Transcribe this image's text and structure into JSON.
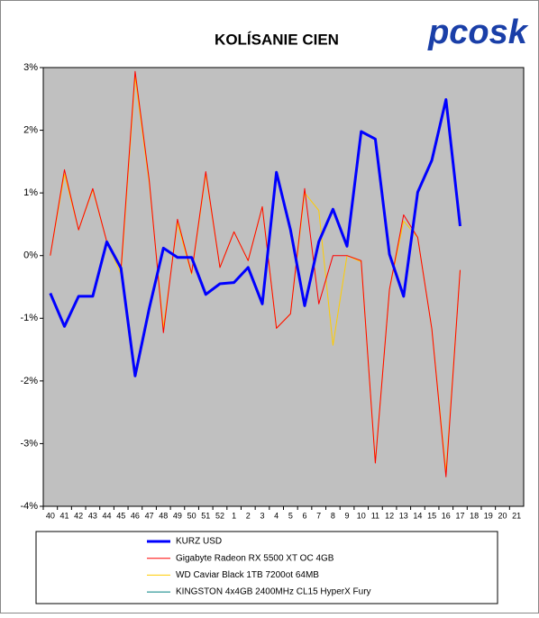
{
  "chart_data": {
    "type": "line",
    "title": "KOLÍSANIE CIEN",
    "logo": "pcosk",
    "categories": [
      "40",
      "41",
      "42",
      "43",
      "44",
      "45",
      "46",
      "47",
      "48",
      "49",
      "50",
      "51",
      "52",
      "1",
      "2",
      "3",
      "4",
      "5",
      "6",
      "7",
      "8",
      "9",
      "10",
      "11",
      "12",
      "13",
      "14",
      "15",
      "16",
      "17",
      "18",
      "19",
      "20",
      "21"
    ],
    "series": [
      {
        "name": "KURZ USD",
        "color": "#0000ff",
        "values": [
          -0.6,
          -1.13,
          -0.65,
          -0.65,
          0.22,
          -0.2,
          -1.92,
          -0.84,
          0.12,
          -0.03,
          -0.03,
          -0.62,
          -0.45,
          -0.43,
          -0.19,
          -0.77,
          1.33,
          0.41,
          -0.8,
          0.22,
          0.74,
          0.15,
          1.98,
          1.86,
          0.02,
          -0.65,
          1.01,
          1.52,
          2.49,
          0.47,
          null,
          null,
          null,
          null
        ]
      },
      {
        "name": "Gigabyte Radeon RX 5500 XT OC 4GB",
        "color": "#ff0000",
        "values": [
          0,
          1.37,
          0.41,
          1.07,
          0.22,
          -0.23,
          2.94,
          1.2,
          -1.23,
          0.58,
          -0.28,
          1.34,
          -0.19,
          0.38,
          -0.08,
          0.78,
          -1.16,
          -0.93,
          1.07,
          -0.77,
          0,
          0,
          -0.08,
          -3.31,
          -0.54,
          0.65,
          0.29,
          -1.17,
          -3.53,
          -0.23,
          null,
          null,
          null,
          null
        ]
      },
      {
        "name": "WD Caviar Black 1TB 7200ot 64MB",
        "color": "#ffcc00",
        "values": [
          0,
          1.3,
          0.41,
          1.05,
          0.22,
          -0.3,
          2.85,
          1.15,
          -1.15,
          0.52,
          -0.3,
          1.3,
          -0.19,
          0.38,
          -0.08,
          0.78,
          -1.16,
          -0.93,
          1.0,
          0.72,
          -1.43,
          0,
          -0.1,
          -3.3,
          -0.54,
          0.55,
          0.29,
          -1.17,
          -3.45,
          -0.23,
          null,
          null,
          null,
          null
        ]
      },
      {
        "name": "KINGSTON 4x4GB 2400MHz CL15 HyperX Fury",
        "color": "#008080",
        "values": [
          null,
          null,
          null,
          null,
          null,
          null,
          null,
          null,
          null,
          null,
          null,
          null,
          null,
          null,
          null,
          null,
          null,
          null,
          null,
          null,
          null,
          null,
          null,
          null,
          null,
          null,
          null,
          null,
          null,
          null,
          null,
          null,
          null,
          null
        ]
      }
    ],
    "ylim": [
      -4,
      3
    ],
    "yticks": [
      {
        "value": -4,
        "label": "-4%"
      },
      {
        "value": -3,
        "label": "-3%"
      },
      {
        "value": -2,
        "label": "-2%"
      },
      {
        "value": -1,
        "label": "-1%"
      },
      {
        "value": 0,
        "label": "0%"
      },
      {
        "value": 1,
        "label": "1%"
      },
      {
        "value": 2,
        "label": "2%"
      },
      {
        "value": 3,
        "label": "3%"
      }
    ],
    "grid": false,
    "legend": "bottom"
  }
}
